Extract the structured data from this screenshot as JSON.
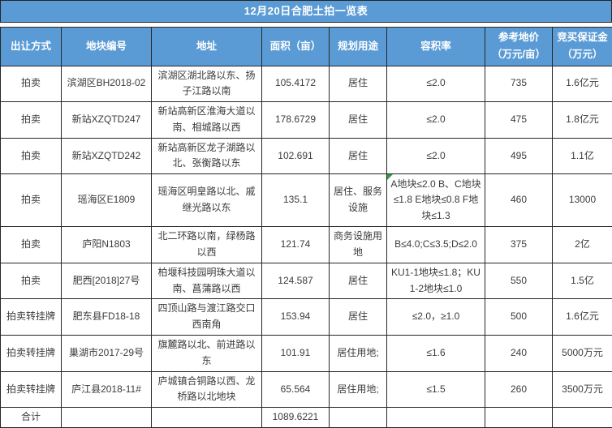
{
  "title": "12月20日合肥土拍一览表",
  "colors": {
    "accent_blue": "#5B9BD5",
    "border": "#262626",
    "body_text": "#3b3b3b",
    "error_indicator_green": "#2e9b40"
  },
  "columns": [
    {
      "key": "method",
      "lines": [
        "出让方式"
      ]
    },
    {
      "key": "plot-id",
      "lines": [
        "地块编号"
      ]
    },
    {
      "key": "address",
      "lines": [
        "地址"
      ]
    },
    {
      "key": "area",
      "lines": [
        "面积（亩）"
      ]
    },
    {
      "key": "usage",
      "lines": [
        "规划用途"
      ]
    },
    {
      "key": "plot-ratio",
      "lines": [
        "容积率"
      ]
    },
    {
      "key": "ref-price",
      "lines": [
        "参考地价",
        "（万元/亩）"
      ]
    },
    {
      "key": "deposit",
      "lines": [
        "竞买保证金",
        "（万元）"
      ]
    }
  ],
  "rows": [
    {
      "cells": [
        "拍卖",
        "滨湖区BH2018-02",
        "滨湖区湖北路以东、扬子江路以南",
        "105.4172",
        "居住",
        "≤2.0",
        "735",
        "1.6亿元"
      ],
      "corner_marker_col": null
    },
    {
      "cells": [
        "拍卖",
        "新站XZQTD247",
        "新站高新区淮海大道以南、相城路以西",
        "178.6729",
        "居住",
        "≤2.0",
        "475",
        "1.8亿元"
      ],
      "corner_marker_col": null
    },
    {
      "cells": [
        "拍卖",
        "新站XZQTD242",
        "新站高新区龙子湖路以北、张衡路以东",
        "102.691",
        "居住",
        "≤2.0",
        "495",
        "1.1亿"
      ],
      "corner_marker_col": null
    },
    {
      "cells": [
        "拍卖",
        "瑶海区E1809",
        "瑶海区明皇路以北、戚继光路以东",
        "135.1",
        "居住、服务设施",
        "A地块≤2.0 B、C地块≤1.8 E地块≤0.8 F地块≤1.3",
        "460",
        "13000"
      ],
      "corner_marker_col": 5
    },
    {
      "cells": [
        "拍卖",
        "庐阳N1803",
        "北二环路以南，绿杨路以西",
        "121.74",
        "商务设施用地",
        "B≤4.0;C≤3.5;D≤2.0",
        "375",
        "2亿"
      ],
      "corner_marker_col": null
    },
    {
      "cells": [
        "拍卖",
        "肥西[2018]27号",
        "柏堰科技园明珠大道以南、菖蒲路以西",
        "124.587",
        "居住",
        "KU1-1地块≤1.8；KU1-2地块≤1.0",
        "550",
        "1.5亿"
      ],
      "corner_marker_col": null
    },
    {
      "cells": [
        "拍卖转挂牌",
        "肥东县FD18-18",
        "四顶山路与渡江路交口西南角",
        "153.94",
        "居住",
        "≤2.0，≥1.0",
        "500",
        "1.6亿元"
      ],
      "corner_marker_col": null
    },
    {
      "cells": [
        "拍卖转挂牌",
        "巢湖市2017-29号",
        "旗麓路以北、前进路以东",
        "101.91",
        "居住用地;",
        "≤1.6",
        "240",
        "5000万元"
      ],
      "corner_marker_col": null
    },
    {
      "cells": [
        "拍卖转挂牌",
        "庐江县2018-11#",
        "庐城镇合铜路以西、龙桥路以北地块",
        "65.564",
        "居住用地;",
        "≤1.5",
        "260",
        "3500万元"
      ],
      "corner_marker_col": null
    }
  ],
  "footer": {
    "cells": [
      "合计",
      "",
      "",
      "1089.6221",
      "",
      "",
      "",
      ""
    ]
  }
}
